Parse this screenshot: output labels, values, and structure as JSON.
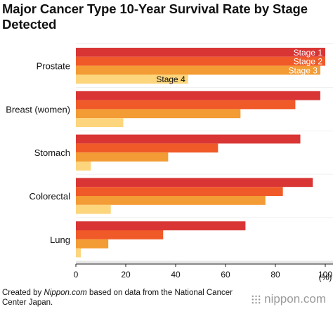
{
  "chart_data": {
    "type": "bar",
    "orientation": "horizontal",
    "title": "Major Cancer Type 10-Year Survival Rate by Stage Detected",
    "categories": [
      "Prostate",
      "Breast (women)",
      "Stomach",
      "Colorectal",
      "Lung"
    ],
    "series": [
      {
        "name": "Stage 1",
        "color": "#d93535",
        "values": [
          100,
          98,
          90,
          95,
          68
        ]
      },
      {
        "name": "Stage 2",
        "color": "#f05a28",
        "values": [
          100,
          88,
          57,
          83,
          35
        ]
      },
      {
        "name": "Stage 3",
        "color": "#f39b34",
        "values": [
          98,
          66,
          37,
          76,
          13
        ]
      },
      {
        "name": "Stage 4",
        "color": "#fdd57d",
        "values": [
          45,
          19,
          6,
          14,
          2
        ]
      }
    ],
    "xlim": [
      0,
      100
    ],
    "xticks": [
      "0",
      "20",
      "40",
      "60",
      "80",
      "100"
    ],
    "xunit": "(%)",
    "grid": false,
    "legend": "inside-bars"
  },
  "footer": {
    "prefix": "Created by ",
    "source": "Nippon.com",
    "suffix": " based on data from the National Cancer Center Japan."
  },
  "brand": {
    "icon": "nippon-logo-icon",
    "text": "nippon.com"
  }
}
